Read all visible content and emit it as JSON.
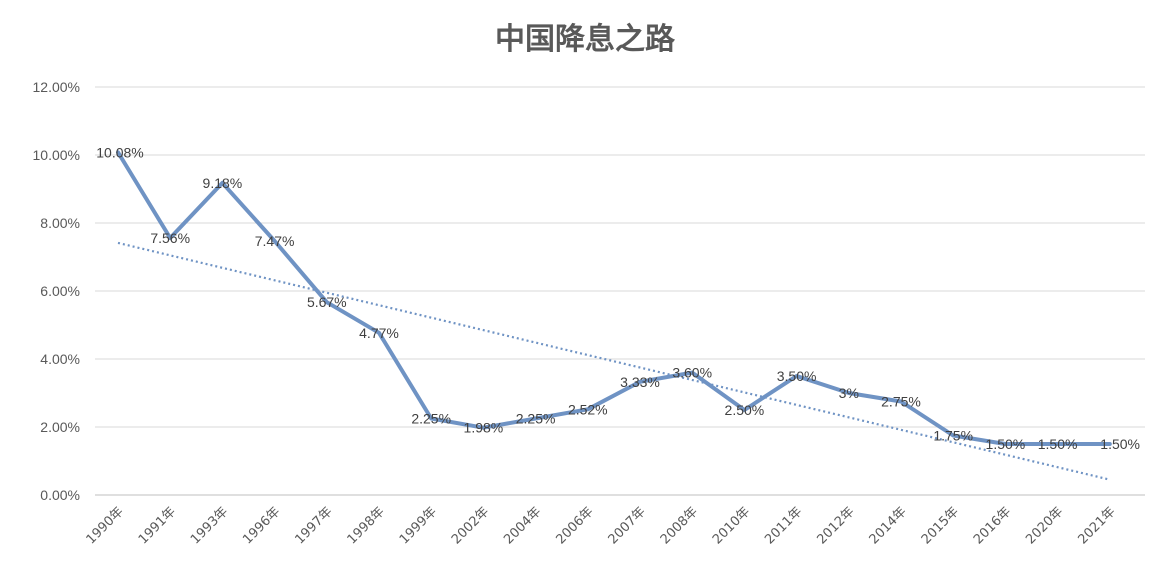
{
  "chart_data": {
    "type": "line",
    "title": "中国降息之路",
    "categories": [
      "1990年",
      "1991年",
      "1993年",
      "1996年",
      "1997年",
      "1998年",
      "1999年",
      "2002年",
      "2004年",
      "2006年",
      "2007年",
      "2008年",
      "2010年",
      "2011年",
      "2012年",
      "2014年",
      "2015年",
      "2016年",
      "2020年",
      "2021年"
    ],
    "series": [
      {
        "values": [
          10.08,
          7.56,
          9.18,
          7.47,
          5.67,
          4.77,
          2.25,
          1.98,
          2.25,
          2.52,
          3.33,
          3.6,
          2.5,
          3.5,
          3.0,
          2.75,
          1.75,
          1.5,
          1.5,
          1.5
        ],
        "labels": [
          "10.08%",
          "7.56%",
          "9.18%",
          "7.47%",
          "5.67%",
          "4.77%",
          "2.25%",
          "1.98%",
          "2.25%",
          "2.52%",
          "3.33%",
          "3.60%",
          "2.50%",
          "3.50%",
          "3%",
          "2.75%",
          "1.75%",
          "1.50%",
          "1.50%",
          "1.50%"
        ],
        "color": "#6f93c4"
      }
    ],
    "trendline": {
      "type": "linear",
      "style": "dotted",
      "color": "#6f93c4"
    },
    "yticks": [
      "0.00%",
      "2.00%",
      "4.00%",
      "6.00%",
      "8.00%",
      "10.00%",
      "12.00%"
    ],
    "ylim": [
      0,
      12
    ],
    "grid": true,
    "legend": "none"
  }
}
